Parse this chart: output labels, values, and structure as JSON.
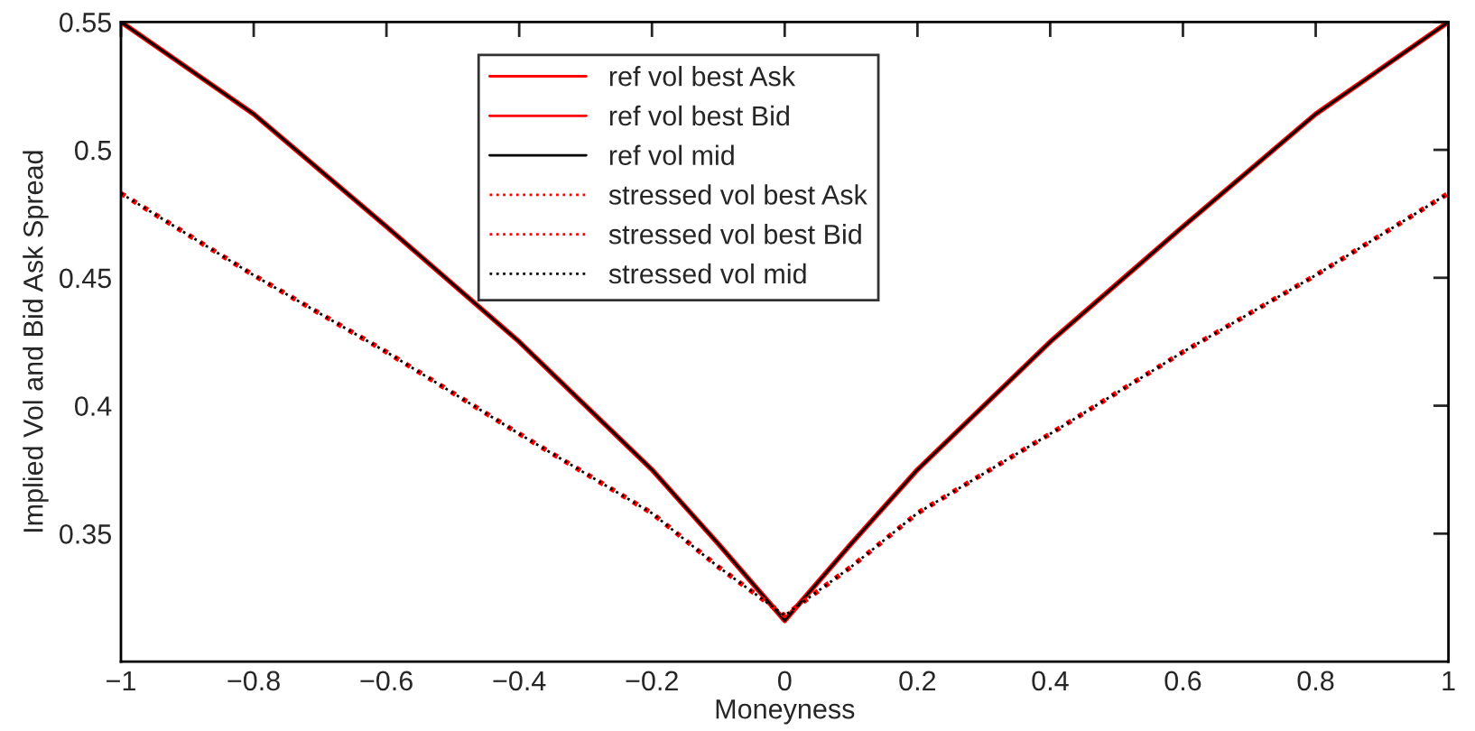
{
  "chart_data": {
    "type": "line",
    "xlabel": "Moneyness",
    "ylabel": "Implied Vol and Bid Ask Spread",
    "x": [
      -1,
      -0.8,
      -0.6,
      -0.4,
      -0.2,
      -0.1,
      0,
      0.1,
      0.2,
      0.4,
      0.6,
      0.8,
      1
    ],
    "series": [
      {
        "name": "ref vol best Ask",
        "color": "#ff0000",
        "line_style": "solid",
        "values": [
          null,
          null,
          null,
          null,
          null,
          null,
          null,
          null,
          null,
          null,
          null,
          null,
          null
        ]
      },
      {
        "name": "ref vol best Bid",
        "color": "#ff0000",
        "line_style": "solid",
        "values": [
          0.55,
          0.514,
          0.47,
          0.425,
          0.375,
          0.346,
          0.316,
          0.346,
          0.375,
          0.425,
          0.47,
          0.514,
          0.55
        ]
      },
      {
        "name": "ref vol mid",
        "color": "#000000",
        "line_style": "solid",
        "values": [
          0.55,
          0.514,
          0.47,
          0.425,
          0.375,
          0.346,
          0.316,
          0.346,
          0.375,
          0.425,
          0.47,
          0.514,
          0.55
        ]
      },
      {
        "name": "stressed vol best Ask",
        "color": "#ff0000",
        "line_style": "dotted",
        "values": [
          null,
          null,
          null,
          null,
          null,
          null,
          null,
          null,
          null,
          null,
          null,
          null,
          null
        ]
      },
      {
        "name": "stressed vol best Bid",
        "color": "#ff0000",
        "line_style": "dotted",
        "values": [
          0.483,
          0.451,
          0.421,
          0.389,
          0.358,
          0.337,
          0.318,
          0.337,
          0.358,
          0.389,
          0.421,
          0.451,
          0.483
        ]
      },
      {
        "name": "stressed vol mid",
        "color": "#000000",
        "line_style": "dotted",
        "values": [
          0.483,
          0.451,
          0.421,
          0.389,
          0.358,
          0.337,
          0.318,
          0.337,
          0.358,
          0.389,
          0.421,
          0.451,
          0.483
        ]
      }
    ],
    "xlim": [
      -1,
      1
    ],
    "xticks": [
      -1,
      -0.8,
      -0.6,
      -0.4,
      -0.2,
      0,
      0.2,
      0.4,
      0.6,
      0.8,
      1
    ],
    "ylim": [
      0.3,
      0.55
    ],
    "yticks": [
      0.35,
      0.4,
      0.45,
      0.5,
      0.55
    ],
    "grid": false,
    "legend": "top",
    "marker": "none"
  }
}
